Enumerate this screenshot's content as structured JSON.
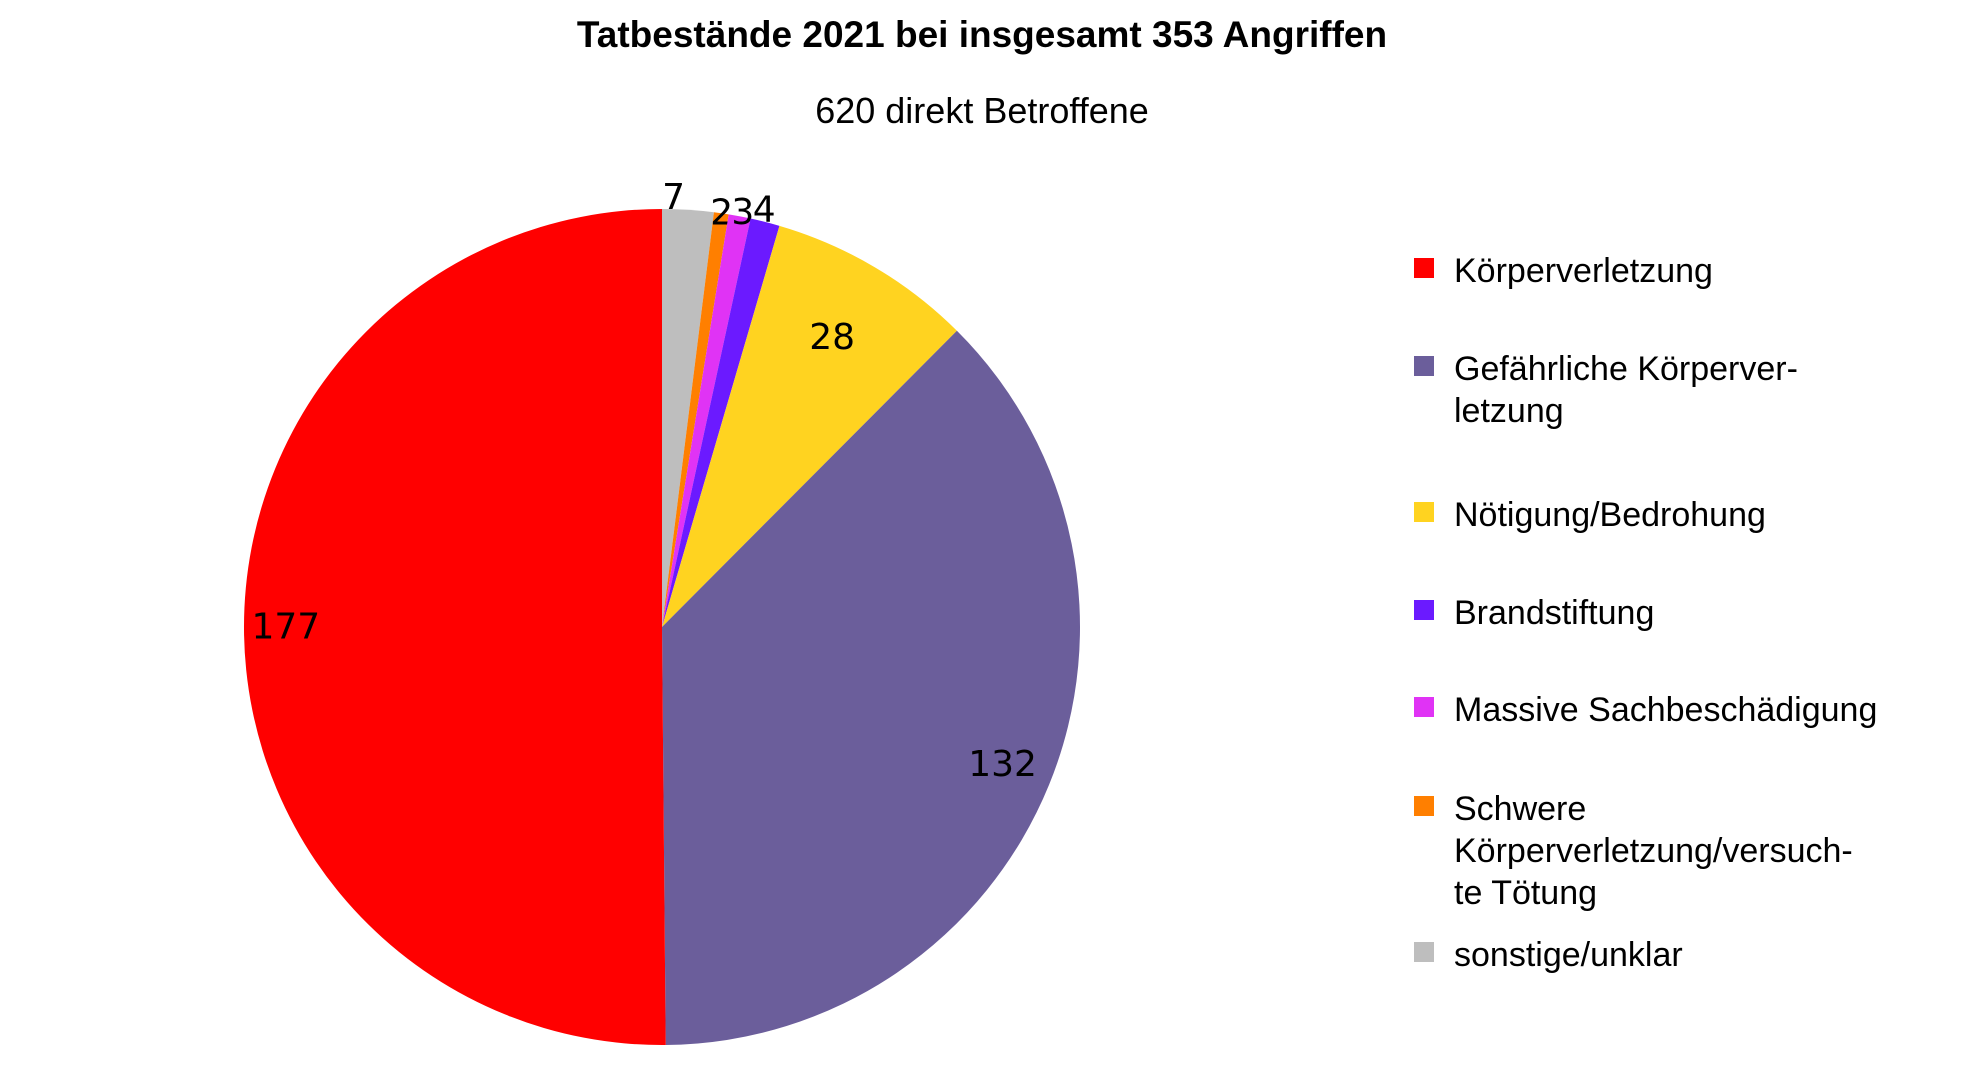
{
  "chart_data": {
    "type": "pie",
    "title": "Tatbestände 2021 bei insgesamt 353 Angriffen",
    "subtitle": "620 direkt Betroffene",
    "slices": [
      {
        "name": "Körperverletzung",
        "value": 177,
        "label": "177",
        "color": "#ff0000"
      },
      {
        "name": "Gefährliche Körperver-\nletzung",
        "value": 132,
        "label": "132",
        "color": "#6b5e9b"
      },
      {
        "name": "Nötigung/Bedrohung",
        "value": 28,
        "label": "28",
        "color": "#ffd320"
      },
      {
        "name": "Brandstiftung",
        "value": 4,
        "label": "4",
        "color": "#6b1aff"
      },
      {
        "name": "Massive Sachbeschädigung",
        "value": 3,
        "label": "3",
        "color": "#e033f5"
      },
      {
        "name": "Schwere\nKörperverletzung/versuch-\nte Tötung",
        "value": 2,
        "label": "2",
        "color": "#ff7f00"
      },
      {
        "name": "sonstige/unklar",
        "value": 7,
        "label": "7",
        "color": "#bebebe"
      }
    ],
    "draw_order": [
      6,
      5,
      4,
      3,
      2,
      1,
      0
    ],
    "legend_position": "right"
  }
}
